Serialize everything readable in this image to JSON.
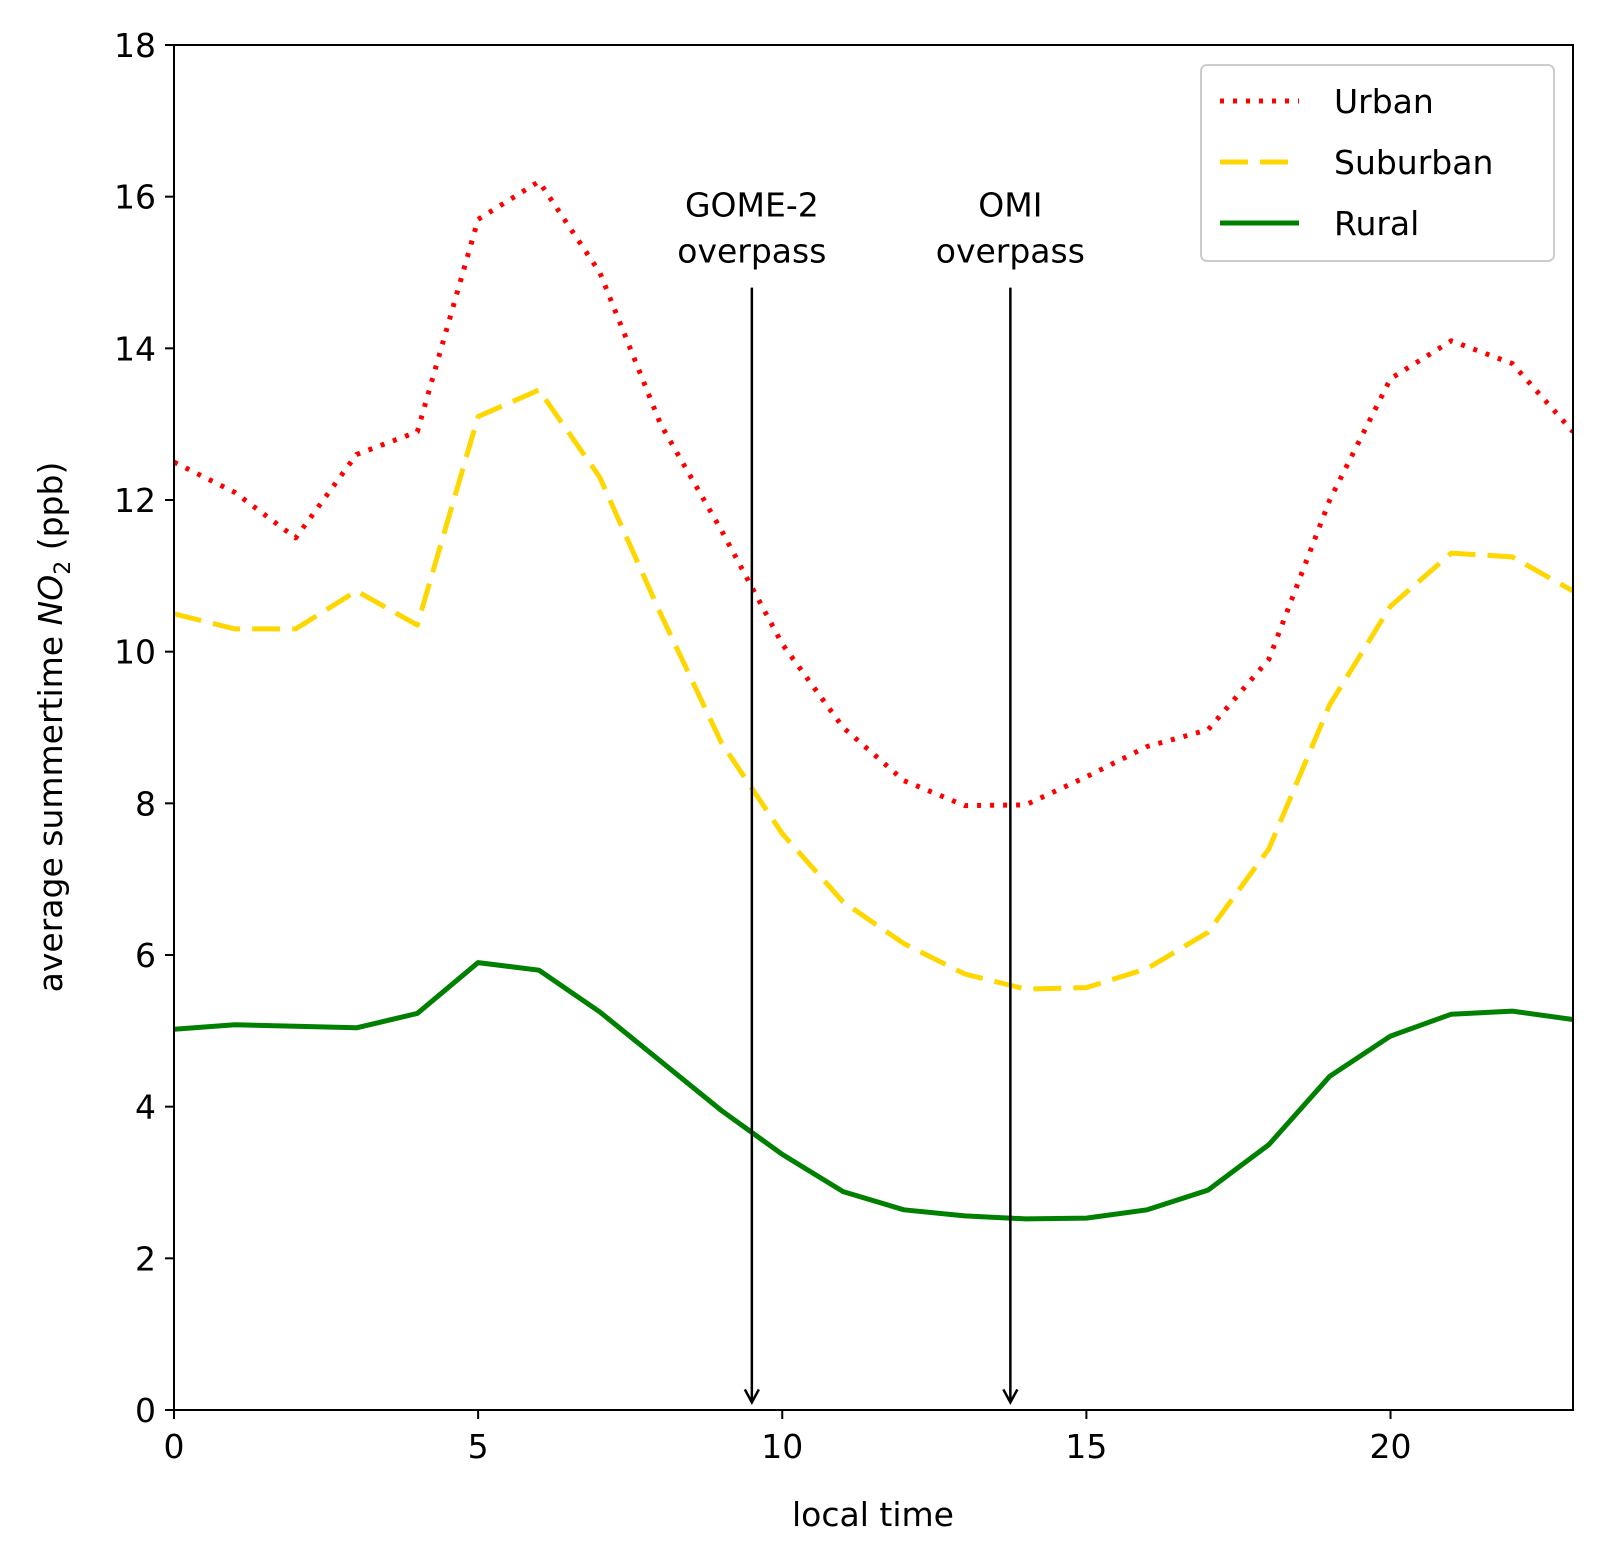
{
  "chart_data": {
    "type": "line",
    "title": "",
    "xlabel": "local time",
    "ylabel_prefix": "average summertime ",
    "ylabel_species": "NO",
    "ylabel_subscript": "2",
    "ylabel_suffix": " (ppb)",
    "xlim": [
      0,
      23
    ],
    "ylim": [
      0,
      18
    ],
    "xticks": [
      0,
      5,
      10,
      15,
      20
    ],
    "yticks": [
      0,
      2,
      4,
      6,
      8,
      10,
      12,
      14,
      16,
      18
    ],
    "grid": false,
    "legend_position": "top-right",
    "x": [
      0,
      1,
      2,
      3,
      4,
      5,
      6,
      7,
      8,
      9,
      10,
      11,
      12,
      13,
      14,
      15,
      16,
      17,
      18,
      19,
      20,
      21,
      22,
      23
    ],
    "series": [
      {
        "name": "Urban",
        "color": "#ff0000",
        "style": "dotted",
        "values": [
          12.5,
          12.1,
          11.5,
          12.6,
          12.9,
          15.7,
          16.2,
          15.0,
          13.0,
          11.6,
          10.1,
          9.0,
          8.3,
          7.97,
          7.98,
          8.35,
          8.75,
          8.97,
          9.9,
          12.0,
          13.6,
          14.1,
          13.8,
          12.9
        ]
      },
      {
        "name": "Suburban",
        "color": "#ffd700",
        "style": "dashed",
        "values": [
          10.5,
          10.3,
          10.3,
          10.8,
          10.35,
          13.1,
          13.45,
          12.3,
          10.5,
          8.8,
          7.6,
          6.7,
          6.15,
          5.75,
          5.55,
          5.57,
          5.82,
          6.3,
          7.4,
          9.3,
          10.6,
          11.3,
          11.25,
          10.8
        ]
      },
      {
        "name": "Rural",
        "color": "#008000",
        "style": "solid",
        "values": [
          5.02,
          5.08,
          5.06,
          5.04,
          5.23,
          5.9,
          5.8,
          5.25,
          4.6,
          3.95,
          3.37,
          2.88,
          2.64,
          2.56,
          2.52,
          2.53,
          2.64,
          2.9,
          3.5,
          4.4,
          4.93,
          5.22,
          5.26,
          5.15
        ]
      }
    ],
    "annotations": [
      {
        "line1": "GOME-2",
        "line2": "overpass",
        "x": 9.5,
        "arrow_from_y": 14.8,
        "arrow_to_y": 0.1
      },
      {
        "line1": "OMI",
        "line2": "overpass",
        "x": 13.75,
        "arrow_from_y": 14.8,
        "arrow_to_y": 0.1
      }
    ]
  }
}
